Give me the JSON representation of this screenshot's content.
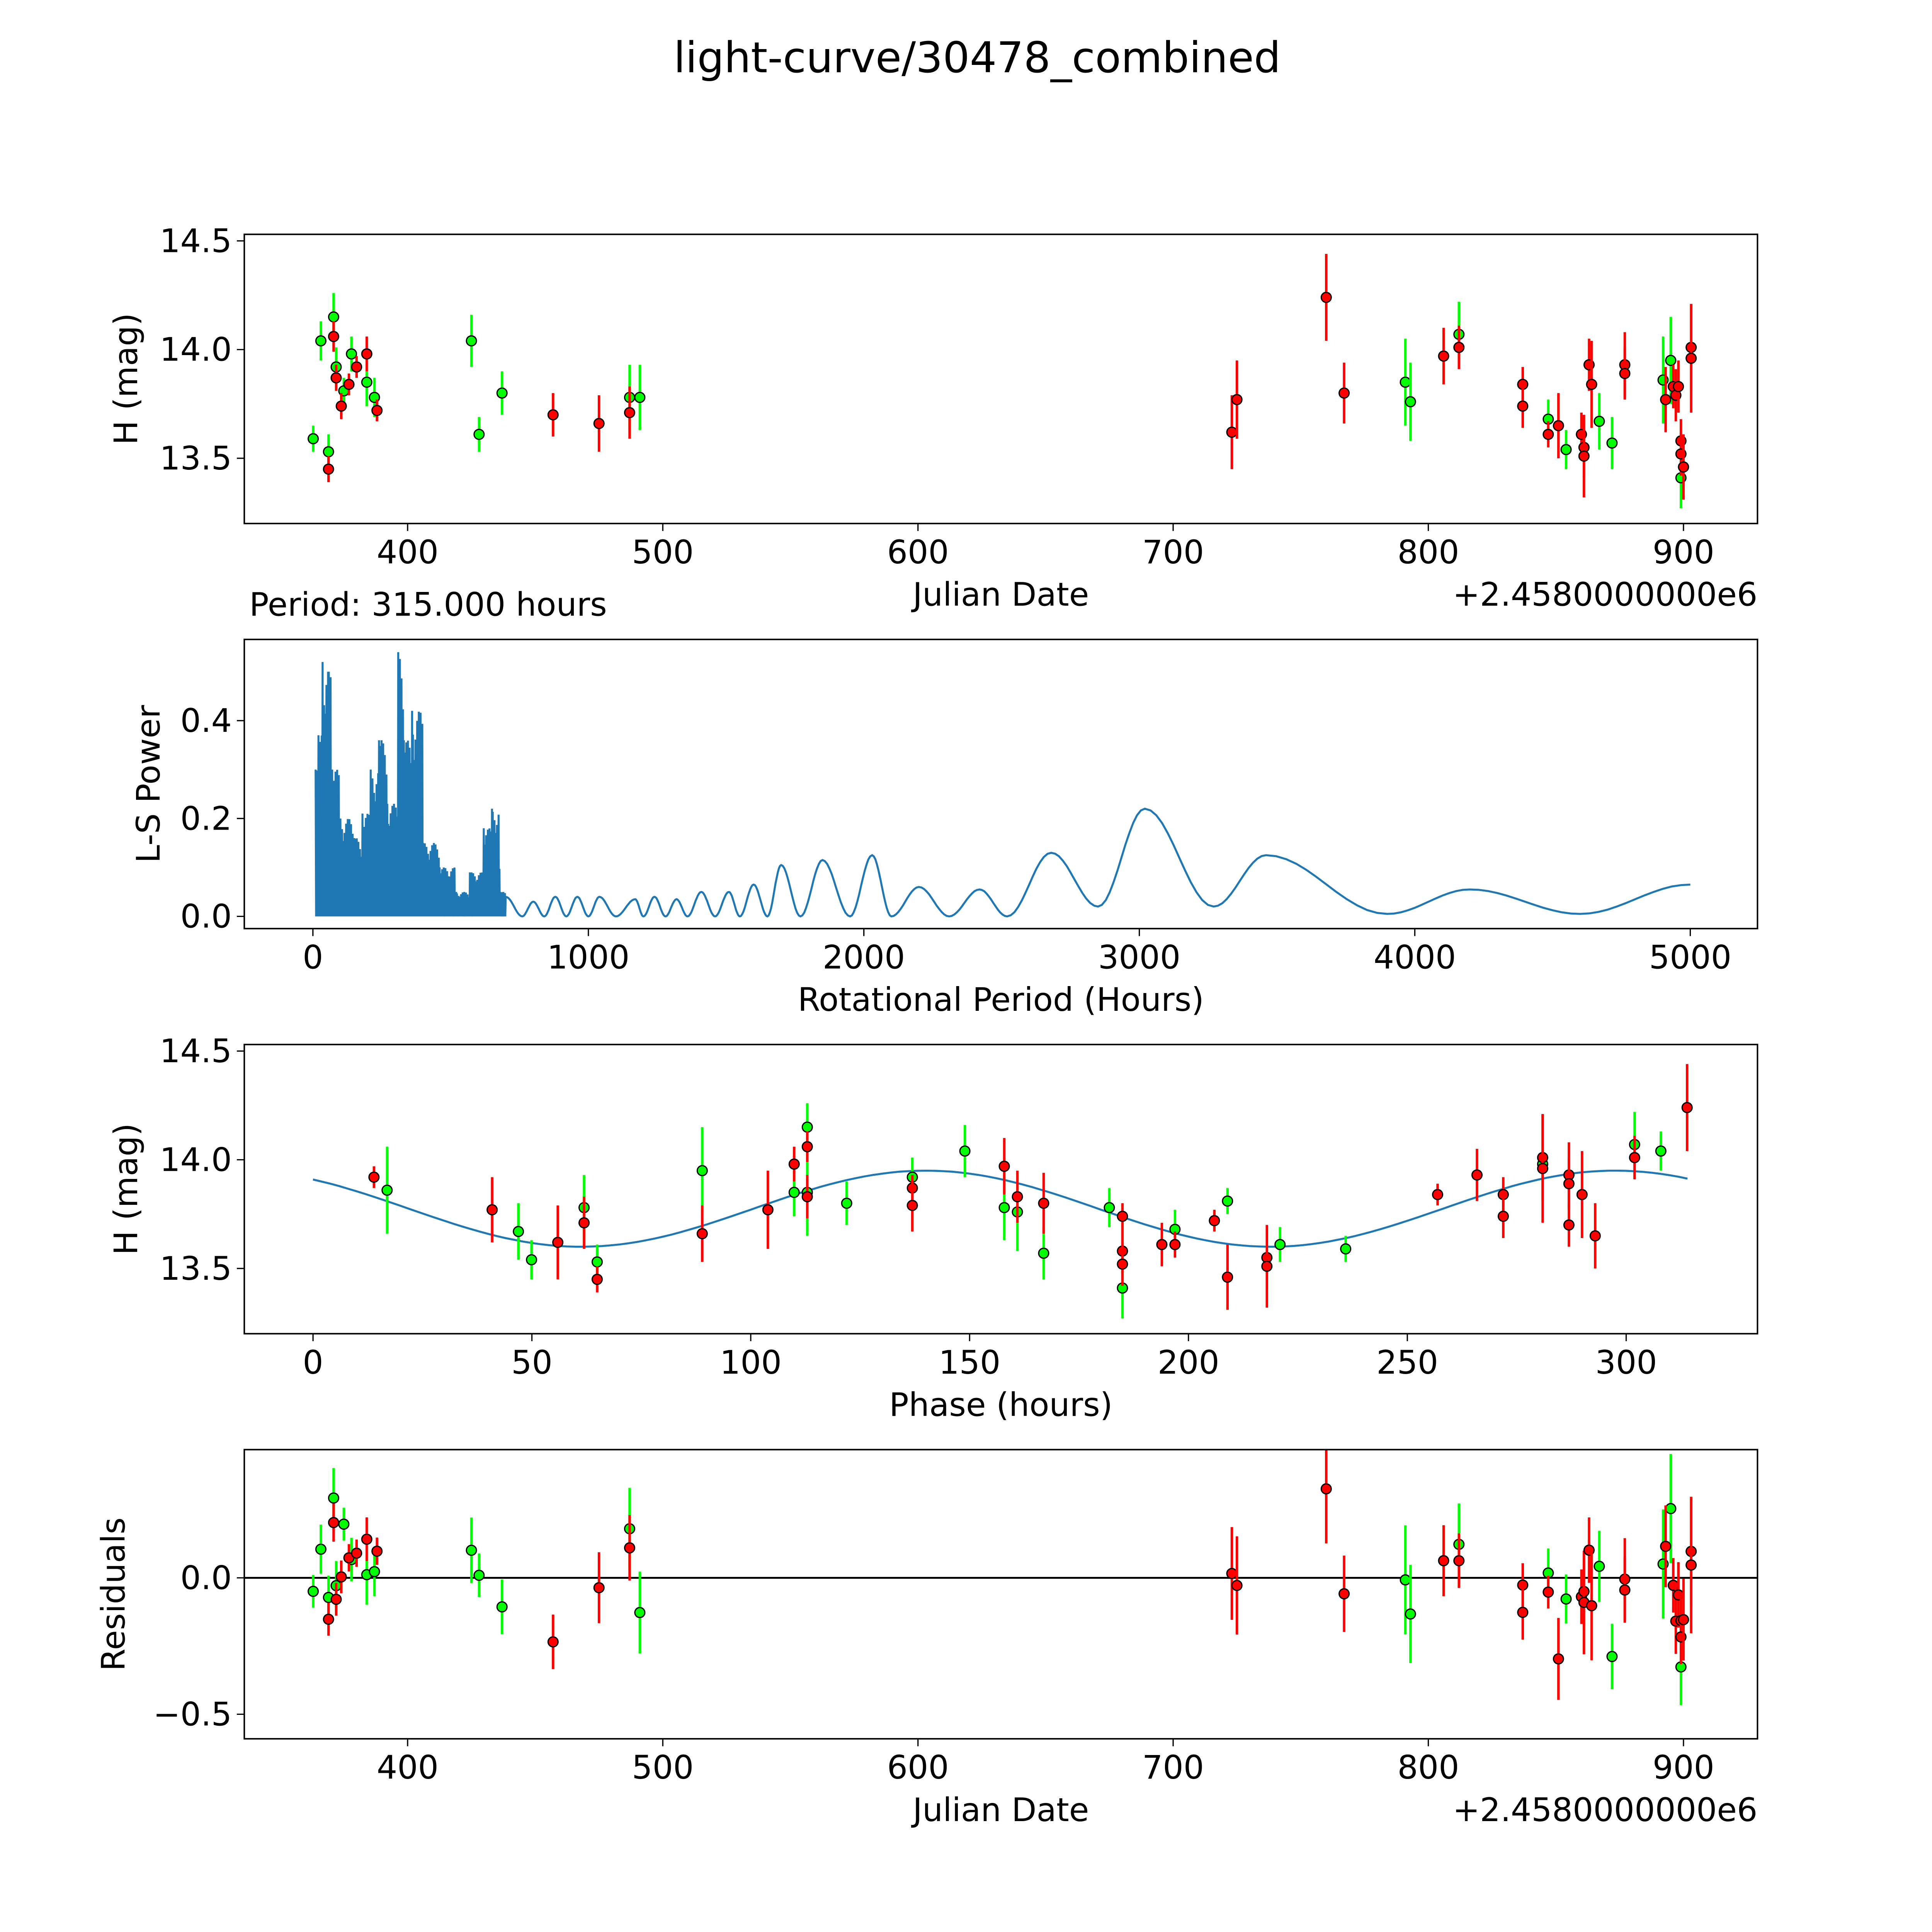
{
  "title": "light-curve/30478_combined",
  "period_label": "Period: 315.000 hours",
  "period_hours": 315,
  "colors": {
    "green": "#00ff00",
    "red": "#ff0000",
    "line": "#1f77b4",
    "black": "#000000"
  },
  "chart_data": [
    {
      "type": "scatter",
      "name": "light-curve",
      "xlabel": "Julian Date",
      "ylabel": "H (mag)",
      "x_offset_label": "+2.4580000000e6",
      "xlim": [
        336,
        929
      ],
      "ylim": [
        13.2,
        14.53
      ],
      "xticks": [
        400,
        500,
        600,
        700,
        800,
        900
      ],
      "yticks": [
        13.5,
        14.0,
        14.5
      ],
      "series": [
        {
          "name": "green",
          "color": "#00ff00",
          "points": [
            [
              363,
              13.59,
              0.06
            ],
            [
              366,
              14.04,
              0.09
            ],
            [
              369,
              13.53,
              0.08
            ],
            [
              371,
              14.15,
              0.11
            ],
            [
              372,
              13.92,
              0.09
            ],
            [
              375,
              13.81,
              0.06
            ],
            [
              378,
              13.98,
              0.08
            ],
            [
              384,
              13.85,
              0.11
            ],
            [
              387,
              13.78,
              0.09
            ],
            [
              425,
              14.04,
              0.12
            ],
            [
              428,
              13.61,
              0.08
            ],
            [
              437,
              13.8,
              0.1
            ],
            [
              487,
              13.78,
              0.15
            ],
            [
              491,
              13.78,
              0.15
            ],
            [
              791,
              13.85,
              0.2
            ],
            [
              793,
              13.76,
              0.18
            ],
            [
              812,
              14.07,
              0.15
            ],
            [
              847,
              13.68,
              0.09
            ],
            [
              854,
              13.54,
              0.09
            ],
            [
              867,
              13.67,
              0.13
            ],
            [
              872,
              13.57,
              0.12
            ],
            [
              892,
              13.86,
              0.2
            ],
            [
              895,
              13.95,
              0.2
            ],
            [
              899,
              13.41,
              0.14
            ]
          ]
        },
        {
          "name": "red",
          "color": "#ff0000",
          "points": [
            [
              369,
              13.45,
              0.06
            ],
            [
              371,
              14.06,
              0.07
            ],
            [
              372,
              13.87,
              0.06
            ],
            [
              374,
              13.74,
              0.06
            ],
            [
              377,
              13.84,
              0.05
            ],
            [
              380,
              13.92,
              0.05
            ],
            [
              384,
              13.98,
              0.08
            ],
            [
              388,
              13.72,
              0.05
            ],
            [
              457,
              13.7,
              0.1
            ],
            [
              475,
              13.66,
              0.13
            ],
            [
              487,
              13.71,
              0.12
            ],
            [
              723,
              13.62,
              0.17
            ],
            [
              725,
              13.77,
              0.18
            ],
            [
              760,
              14.24,
              0.2
            ],
            [
              767,
              13.8,
              0.14
            ],
            [
              806,
              13.97,
              0.13
            ],
            [
              812,
              14.01,
              0.1
            ],
            [
              837,
              13.84,
              0.08
            ],
            [
              837,
              13.74,
              0.1
            ],
            [
              847,
              13.61,
              0.06
            ],
            [
              851,
              13.65,
              0.15
            ],
            [
              860,
              13.61,
              0.1
            ],
            [
              861,
              13.55,
              0.14
            ],
            [
              861,
              13.51,
              0.19
            ],
            [
              863,
              13.93,
              0.12
            ],
            [
              864,
              13.84,
              0.2
            ],
            [
              877,
              13.93,
              0.15
            ],
            [
              877,
              13.89,
              0.12
            ],
            [
              893,
              13.77,
              0.15
            ],
            [
              896,
              13.83,
              0.1
            ],
            [
              897,
              13.79,
              0.12
            ],
            [
              898,
              13.83,
              0.12
            ],
            [
              899,
              13.58,
              0.1
            ],
            [
              899,
              13.52,
              0.1
            ],
            [
              900,
              13.46,
              0.15
            ],
            [
              903,
              14.01,
              0.2
            ],
            [
              903,
              13.96,
              0.25
            ]
          ]
        }
      ]
    },
    {
      "type": "line",
      "name": "periodogram",
      "xlabel": "Rotational Period (Hours)",
      "ylabel": "L-S Power",
      "xlim": [
        -249,
        5244
      ],
      "ylim": [
        -0.025,
        0.566
      ],
      "xticks": [
        0,
        1000,
        2000,
        3000,
        4000,
        5000
      ],
      "yticks": [
        0.0,
        0.2,
        0.4
      ],
      "noisy_peaks": [
        [
          10,
          0.3
        ],
        [
          20,
          0.37
        ],
        [
          35,
          0.52
        ],
        [
          55,
          0.5
        ],
        [
          70,
          0.3
        ],
        [
          100,
          0.2
        ],
        [
          150,
          0.16
        ],
        [
          180,
          0.21
        ],
        [
          210,
          0.3
        ],
        [
          240,
          0.36
        ],
        [
          270,
          0.23
        ],
        [
          310,
          0.54
        ],
        [
          330,
          0.36
        ],
        [
          360,
          0.42
        ],
        [
          400,
          0.15
        ],
        [
          460,
          0.1
        ],
        [
          520,
          0.05
        ],
        [
          570,
          0.09
        ],
        [
          620,
          0.18
        ],
        [
          650,
          0.22
        ],
        [
          680,
          0.05
        ]
      ],
      "smooth_extrema": [
        [
          700,
          0.04
        ],
        [
          760,
          0.0
        ],
        [
          800,
          0.03
        ],
        [
          840,
          0.0
        ],
        [
          880,
          0.04
        ],
        [
          920,
          0.0
        ],
        [
          960,
          0.04
        ],
        [
          1000,
          0.0
        ],
        [
          1040,
          0.04
        ],
        [
          1100,
          0.0
        ],
        [
          1170,
          0.035
        ],
        [
          1200,
          0.0
        ],
        [
          1240,
          0.04
        ],
        [
          1280,
          0.0
        ],
        [
          1320,
          0.035
        ],
        [
          1360,
          0.0
        ],
        [
          1410,
          0.05
        ],
        [
          1460,
          0.0
        ],
        [
          1510,
          0.05
        ],
        [
          1550,
          0.0
        ],
        [
          1600,
          0.065
        ],
        [
          1650,
          0.0
        ],
        [
          1700,
          0.105
        ],
        [
          1770,
          0.0
        ],
        [
          1850,
          0.115
        ],
        [
          1950,
          0.0
        ],
        [
          2030,
          0.125
        ],
        [
          2100,
          0.0
        ],
        [
          2200,
          0.06
        ],
        [
          2310,
          0.0
        ],
        [
          2420,
          0.055
        ],
        [
          2520,
          0.0
        ],
        [
          2680,
          0.13
        ],
        [
          2850,
          0.02
        ],
        [
          3020,
          0.22
        ],
        [
          3270,
          0.02
        ],
        [
          3460,
          0.125
        ],
        [
          3900,
          0.005
        ],
        [
          4200,
          0.055
        ],
        [
          4600,
          0.005
        ],
        [
          5000,
          0.065
        ]
      ]
    },
    {
      "type": "scatter",
      "name": "phased",
      "xlabel": "Phase (hours)",
      "ylabel": "H (mag)",
      "xlim": [
        -15.7,
        330
      ],
      "ylim": [
        13.2,
        14.53
      ],
      "xticks": [
        0,
        50,
        100,
        150,
        200,
        250,
        300
      ],
      "yticks": [
        13.5,
        14.0,
        14.5
      ],
      "model": {
        "mean": 13.775,
        "amplitude": 0.175,
        "peak_phase": 140,
        "harmonic_period": 157.5
      }
    },
    {
      "type": "scatter",
      "name": "residuals",
      "xlabel": "Julian Date",
      "ylabel": "Residuals",
      "x_offset_label": "+2.4580000000e6",
      "xlim": [
        336,
        929
      ],
      "ylim": [
        -0.59,
        0.47
      ],
      "xticks": [
        400,
        500,
        600,
        700,
        800,
        900
      ],
      "yticks": [
        -0.5,
        0.0
      ]
    }
  ]
}
